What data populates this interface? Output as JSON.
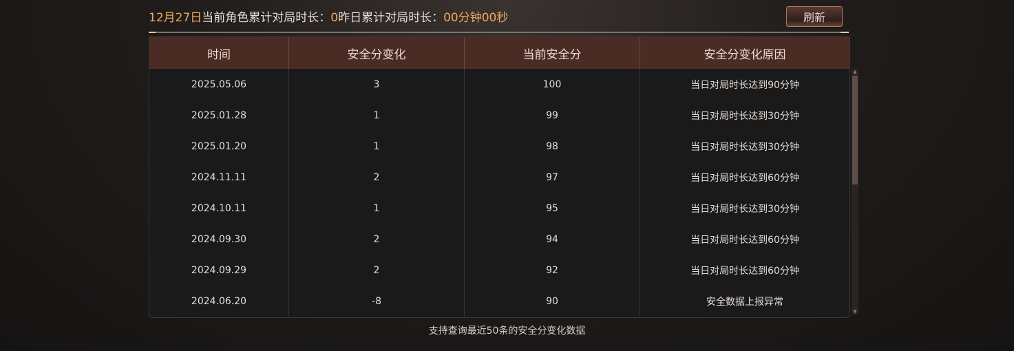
{
  "header": {
    "date": "12月27日",
    "current_label": "当前角色累计对局时长：",
    "current_value": "0",
    "yesterday_label": "昨日累计对局时长：",
    "yesterday_value": "00分钟00秒",
    "refresh_label": "刷新"
  },
  "table": {
    "columns": [
      "时间",
      "安全分变化",
      "当前安全分",
      "安全分变化原因"
    ],
    "rows": [
      [
        "2025.05.06",
        "3",
        "100",
        "当日对局时长达到90分钟"
      ],
      [
        "2025.01.28",
        "1",
        "99",
        "当日对局时长达到30分钟"
      ],
      [
        "2025.01.20",
        "1",
        "98",
        "当日对局时长达到30分钟"
      ],
      [
        "2024.11.11",
        "2",
        "97",
        "当日对局时长达到60分钟"
      ],
      [
        "2024.10.11",
        "1",
        "95",
        "当日对局时长达到30分钟"
      ],
      [
        "2024.09.30",
        "2",
        "94",
        "当日对局时长达到60分钟"
      ],
      [
        "2024.09.29",
        "2",
        "92",
        "当日对局时长达到60分钟"
      ],
      [
        "2024.06.20",
        "-8",
        "90",
        "安全数据上报异常"
      ]
    ]
  },
  "footer": "支持查询最近50条的安全分变化数据",
  "colors": {
    "accent": "#f0a85a",
    "header_bg": "#4b2c24"
  }
}
